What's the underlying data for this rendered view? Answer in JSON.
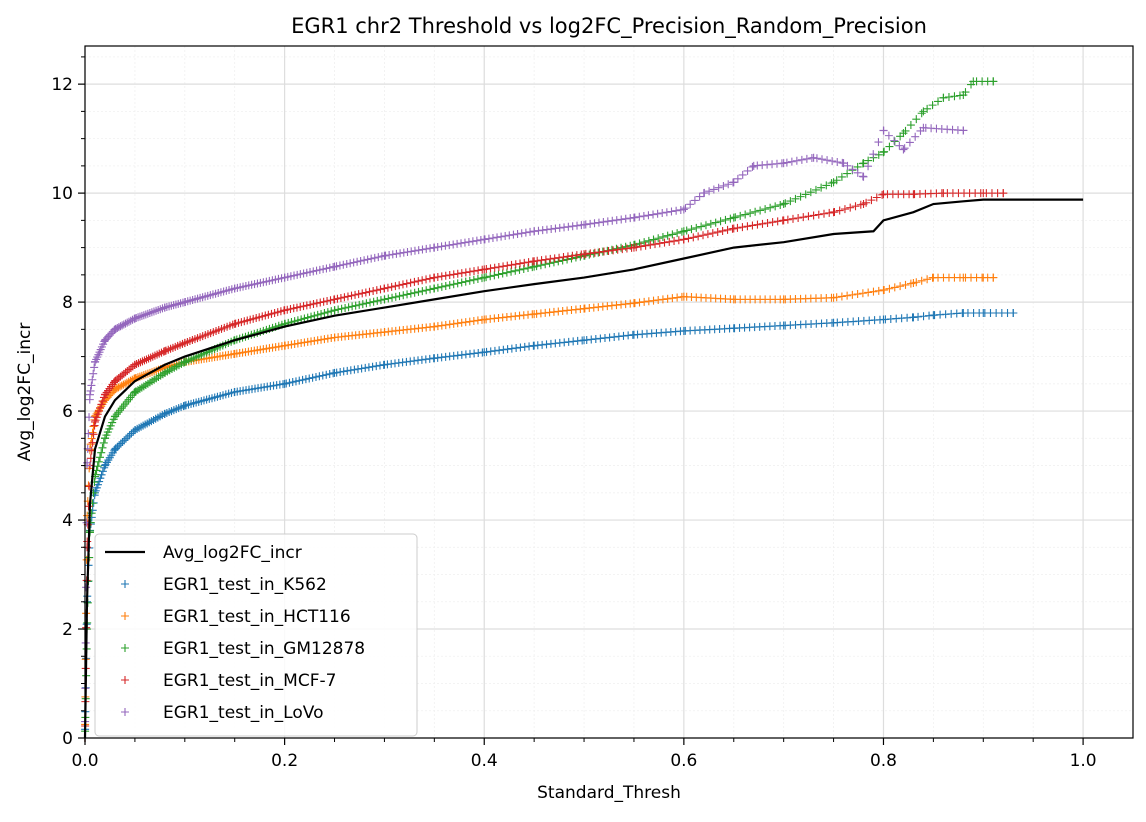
{
  "chart_data": {
    "type": "scatter",
    "title": "EGR1 chr2 Threshold vs log2FC_Precision_Random_Precision",
    "xlabel": "Standard_Thresh",
    "ylabel": "Avg_log2FC_incr",
    "xlim": [
      0.0,
      1.05
    ],
    "ylim": [
      0,
      12.7
    ],
    "x_ticks": [
      0.0,
      0.2,
      0.4,
      0.6,
      0.8,
      1.0
    ],
    "x_tick_labels": [
      "0.0",
      "0.2",
      "0.4",
      "0.6",
      "0.8",
      "1.0"
    ],
    "y_ticks": [
      0,
      2,
      4,
      6,
      8,
      10,
      12
    ],
    "y_tick_labels": [
      "0",
      "2",
      "4",
      "6",
      "8",
      "10",
      "12"
    ],
    "grid": true,
    "minor_grid": true,
    "legend_position": "lower-left",
    "series": [
      {
        "name": "Avg_log2FC_incr",
        "kind": "line",
        "color": "#000000",
        "points": [
          [
            0.0,
            0.0
          ],
          [
            0.002,
            2.5
          ],
          [
            0.005,
            4.3
          ],
          [
            0.01,
            5.3
          ],
          [
            0.02,
            5.9
          ],
          [
            0.03,
            6.2
          ],
          [
            0.05,
            6.55
          ],
          [
            0.08,
            6.85
          ],
          [
            0.1,
            7.0
          ],
          [
            0.15,
            7.3
          ],
          [
            0.2,
            7.55
          ],
          [
            0.25,
            7.75
          ],
          [
            0.3,
            7.9
          ],
          [
            0.35,
            8.05
          ],
          [
            0.4,
            8.2
          ],
          [
            0.45,
            8.33
          ],
          [
            0.5,
            8.45
          ],
          [
            0.55,
            8.6
          ],
          [
            0.6,
            8.8
          ],
          [
            0.65,
            9.0
          ],
          [
            0.7,
            9.1
          ],
          [
            0.75,
            9.25
          ],
          [
            0.79,
            9.3
          ],
          [
            0.8,
            9.5
          ],
          [
            0.83,
            9.65
          ],
          [
            0.85,
            9.8
          ],
          [
            0.88,
            9.85
          ],
          [
            0.9,
            9.88
          ],
          [
            1.0,
            9.88
          ]
        ]
      },
      {
        "name": "EGR1_test_in_K562",
        "kind": "scatter",
        "marker": "+",
        "color": "#1f77b4",
        "points": [
          [
            0.0,
            0.0
          ],
          [
            0.002,
            2.5
          ],
          [
            0.005,
            3.8
          ],
          [
            0.01,
            4.5
          ],
          [
            0.02,
            5.0
          ],
          [
            0.03,
            5.3
          ],
          [
            0.05,
            5.65
          ],
          [
            0.08,
            5.95
          ],
          [
            0.1,
            6.1
          ],
          [
            0.15,
            6.35
          ],
          [
            0.2,
            6.5
          ],
          [
            0.25,
            6.7
          ],
          [
            0.3,
            6.85
          ],
          [
            0.35,
            6.97
          ],
          [
            0.4,
            7.08
          ],
          [
            0.45,
            7.2
          ],
          [
            0.5,
            7.3
          ],
          [
            0.55,
            7.4
          ],
          [
            0.6,
            7.47
          ],
          [
            0.65,
            7.52
          ],
          [
            0.7,
            7.57
          ],
          [
            0.75,
            7.62
          ],
          [
            0.8,
            7.68
          ],
          [
            0.83,
            7.72
          ],
          [
            0.85,
            7.76
          ],
          [
            0.88,
            7.8
          ],
          [
            0.9,
            7.8
          ],
          [
            0.93,
            7.8
          ]
        ]
      },
      {
        "name": "EGR1_test_in_HCT116",
        "kind": "scatter",
        "marker": "+",
        "color": "#ff7f0e",
        "points": [
          [
            0.0,
            0.0
          ],
          [
            0.002,
            4.0
          ],
          [
            0.005,
            5.3
          ],
          [
            0.01,
            5.9
          ],
          [
            0.02,
            6.2
          ],
          [
            0.03,
            6.4
          ],
          [
            0.05,
            6.6
          ],
          [
            0.08,
            6.8
          ],
          [
            0.1,
            6.9
          ],
          [
            0.15,
            7.05
          ],
          [
            0.2,
            7.2
          ],
          [
            0.25,
            7.35
          ],
          [
            0.3,
            7.45
          ],
          [
            0.35,
            7.55
          ],
          [
            0.4,
            7.68
          ],
          [
            0.45,
            7.78
          ],
          [
            0.5,
            7.88
          ],
          [
            0.55,
            7.98
          ],
          [
            0.6,
            8.1
          ],
          [
            0.65,
            8.05
          ],
          [
            0.7,
            8.05
          ],
          [
            0.75,
            8.08
          ],
          [
            0.8,
            8.22
          ],
          [
            0.83,
            8.35
          ],
          [
            0.85,
            8.45
          ],
          [
            0.88,
            8.45
          ],
          [
            0.9,
            8.45
          ],
          [
            0.91,
            8.45
          ]
        ]
      },
      {
        "name": "EGR1_test_in_GM12878",
        "kind": "scatter",
        "marker": "+",
        "color": "#2ca02c",
        "points": [
          [
            0.0,
            0.0
          ],
          [
            0.002,
            2.0
          ],
          [
            0.005,
            3.8
          ],
          [
            0.01,
            4.8
          ],
          [
            0.02,
            5.5
          ],
          [
            0.03,
            5.9
          ],
          [
            0.05,
            6.35
          ],
          [
            0.08,
            6.7
          ],
          [
            0.1,
            6.9
          ],
          [
            0.15,
            7.3
          ],
          [
            0.2,
            7.6
          ],
          [
            0.25,
            7.85
          ],
          [
            0.3,
            8.05
          ],
          [
            0.35,
            8.25
          ],
          [
            0.4,
            8.45
          ],
          [
            0.45,
            8.65
          ],
          [
            0.5,
            8.85
          ],
          [
            0.55,
            9.05
          ],
          [
            0.6,
            9.3
          ],
          [
            0.65,
            9.55
          ],
          [
            0.7,
            9.8
          ],
          [
            0.75,
            10.2
          ],
          [
            0.78,
            10.55
          ],
          [
            0.8,
            10.75
          ],
          [
            0.82,
            11.1
          ],
          [
            0.84,
            11.5
          ],
          [
            0.86,
            11.75
          ],
          [
            0.88,
            11.8
          ],
          [
            0.89,
            12.05
          ],
          [
            0.91,
            12.05
          ]
        ]
      },
      {
        "name": "EGR1_test_in_MCF-7",
        "kind": "scatter",
        "marker": "+",
        "color": "#d62728",
        "points": [
          [
            0.0,
            0.0
          ],
          [
            0.002,
            3.5
          ],
          [
            0.005,
            5.0
          ],
          [
            0.01,
            5.8
          ],
          [
            0.02,
            6.3
          ],
          [
            0.03,
            6.55
          ],
          [
            0.05,
            6.85
          ],
          [
            0.08,
            7.1
          ],
          [
            0.1,
            7.25
          ],
          [
            0.15,
            7.6
          ],
          [
            0.2,
            7.85
          ],
          [
            0.25,
            8.05
          ],
          [
            0.3,
            8.25
          ],
          [
            0.35,
            8.45
          ],
          [
            0.4,
            8.6
          ],
          [
            0.45,
            8.75
          ],
          [
            0.5,
            8.88
          ],
          [
            0.55,
            9.0
          ],
          [
            0.6,
            9.15
          ],
          [
            0.65,
            9.35
          ],
          [
            0.7,
            9.5
          ],
          [
            0.75,
            9.65
          ],
          [
            0.78,
            9.8
          ],
          [
            0.8,
            9.98
          ],
          [
            0.83,
            9.98
          ],
          [
            0.86,
            10.0
          ],
          [
            0.9,
            10.0
          ],
          [
            0.92,
            10.0
          ]
        ]
      },
      {
        "name": "EGR1_test_in_LoVo",
        "kind": "scatter",
        "marker": "+",
        "color": "#9467bd",
        "points": [
          [
            0.0,
            0.0
          ],
          [
            0.002,
            5.0
          ],
          [
            0.005,
            6.3
          ],
          [
            0.01,
            6.9
          ],
          [
            0.02,
            7.3
          ],
          [
            0.03,
            7.5
          ],
          [
            0.05,
            7.7
          ],
          [
            0.08,
            7.9
          ],
          [
            0.1,
            8.0
          ],
          [
            0.15,
            8.25
          ],
          [
            0.2,
            8.45
          ],
          [
            0.25,
            8.65
          ],
          [
            0.3,
            8.85
          ],
          [
            0.35,
            9.0
          ],
          [
            0.4,
            9.15
          ],
          [
            0.45,
            9.3
          ],
          [
            0.5,
            9.42
          ],
          [
            0.55,
            9.55
          ],
          [
            0.6,
            9.7
          ],
          [
            0.62,
            10.0
          ],
          [
            0.65,
            10.2
          ],
          [
            0.67,
            10.5
          ],
          [
            0.7,
            10.55
          ],
          [
            0.73,
            10.65
          ],
          [
            0.76,
            10.55
          ],
          [
            0.78,
            10.3
          ],
          [
            0.8,
            11.15
          ],
          [
            0.82,
            10.8
          ],
          [
            0.84,
            11.2
          ],
          [
            0.88,
            11.15
          ]
        ]
      }
    ]
  }
}
